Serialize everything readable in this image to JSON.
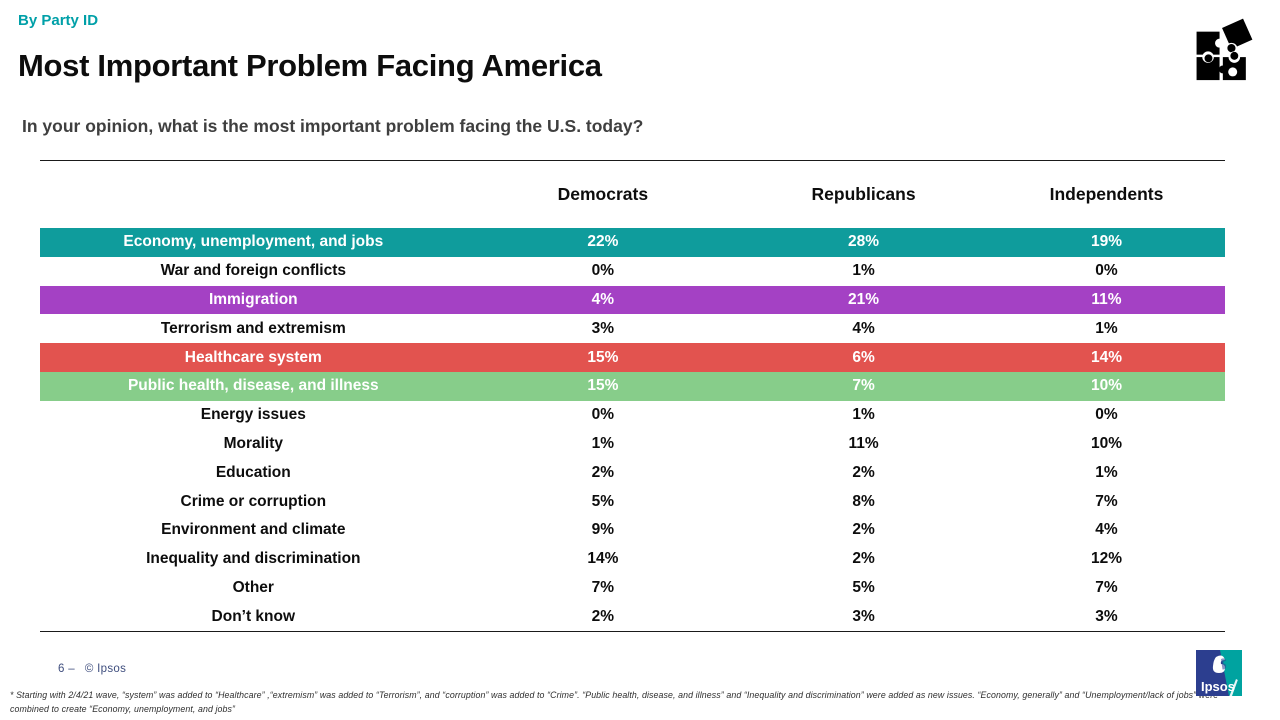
{
  "slide": {
    "kicker": "By Party ID",
    "title": "Most Important Problem Facing America",
    "subtitle": "In your opinion, what is the most important problem facing the U.S. today?"
  },
  "table": {
    "columns": [
      "Democrats",
      "Republicans",
      "Independents"
    ],
    "rows": [
      {
        "label": "Economy, unemployment, and jobs",
        "values": [
          "22%",
          "28%",
          "19%"
        ],
        "highlight": "#0f9c9c"
      },
      {
        "label": "War and foreign conflicts",
        "values": [
          "0%",
          "1%",
          "0%"
        ],
        "highlight": null
      },
      {
        "label": "Immigration",
        "values": [
          "4%",
          "21%",
          "11%"
        ],
        "highlight": "#a441c4"
      },
      {
        "label": "Terrorism and extremism",
        "values": [
          "3%",
          "4%",
          "1%"
        ],
        "highlight": null
      },
      {
        "label": "Healthcare system",
        "values": [
          "15%",
          "6%",
          "14%"
        ],
        "highlight": "#e2534f"
      },
      {
        "label": "Public health, disease, and illness",
        "values": [
          "15%",
          "7%",
          "10%"
        ],
        "highlight": "#87cd8a"
      },
      {
        "label": "Energy issues",
        "values": [
          "0%",
          "1%",
          "0%"
        ],
        "highlight": null
      },
      {
        "label": "Morality",
        "values": [
          "1%",
          "11%",
          "10%"
        ],
        "highlight": null
      },
      {
        "label": "Education",
        "values": [
          "2%",
          "2%",
          "1%"
        ],
        "highlight": null
      },
      {
        "label": "Crime or corruption",
        "values": [
          "5%",
          "8%",
          "7%"
        ],
        "highlight": null
      },
      {
        "label": "Environment and climate",
        "values": [
          "9%",
          "2%",
          "4%"
        ],
        "highlight": null
      },
      {
        "label": "Inequality and discrimination",
        "values": [
          "14%",
          "2%",
          "12%"
        ],
        "highlight": null
      },
      {
        "label": "Other",
        "values": [
          "7%",
          "5%",
          "7%"
        ],
        "highlight": null
      },
      {
        "label": "Don’t know",
        "values": [
          "2%",
          "3%",
          "3%"
        ],
        "highlight": null
      }
    ]
  },
  "footer": {
    "page_label": "6 –",
    "copyright": "© Ipsos",
    "footnote_line1": "* Starting with 2/4/21 wave, “system” was added to “Healthcare” ,“extremism” was added to “Terrorism”, and “corruption” was added to “Crime”. “Public health, disease, and illness” and “Inequality and discrimination” were added as new issues. “Economy, generally” and “Unemployment/lack of jobs” were",
    "footnote_line2": "combined to create “Economy, unemployment, and jobs”"
  },
  "icons": {
    "puzzle_icon": "puzzle-pieces",
    "ipsos_logo_text": "Ipsos"
  },
  "colors": {
    "kicker_teal": "#00a0a8",
    "row_teal": "#0f9c9c",
    "row_purple": "#a441c4",
    "row_red": "#e2534f",
    "row_green": "#87cd8a",
    "footer_blue": "#3f4e7e",
    "logo_blue": "#2c3e8f",
    "logo_teal": "#00a3a0"
  }
}
